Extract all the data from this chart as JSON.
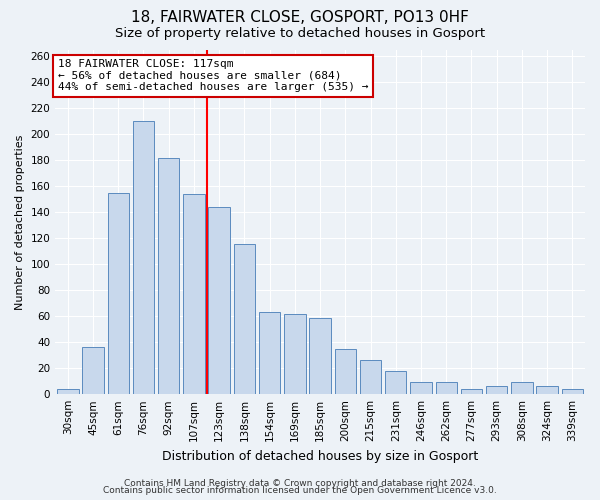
{
  "title": "18, FAIRWATER CLOSE, GOSPORT, PO13 0HF",
  "subtitle": "Size of property relative to detached houses in Gosport",
  "xlabel": "Distribution of detached houses by size in Gosport",
  "ylabel": "Number of detached properties",
  "categories": [
    "30sqm",
    "45sqm",
    "61sqm",
    "76sqm",
    "92sqm",
    "107sqm",
    "123sqm",
    "138sqm",
    "154sqm",
    "169sqm",
    "185sqm",
    "200sqm",
    "215sqm",
    "231sqm",
    "246sqm",
    "262sqm",
    "277sqm",
    "293sqm",
    "308sqm",
    "324sqm",
    "339sqm"
  ],
  "values": [
    4,
    36,
    155,
    210,
    182,
    154,
    144,
    116,
    63,
    62,
    59,
    35,
    26,
    18,
    9,
    9,
    4,
    6,
    9,
    6,
    4
  ],
  "bar_color": "#c8d8ec",
  "bar_edgecolor": "#5b8bbf",
  "vline_x_index": 6,
  "vline_color": "red",
  "annotation_title": "18 FAIRWATER CLOSE: 117sqm",
  "annotation_line1": "← 56% of detached houses are smaller (684)",
  "annotation_line2": "44% of semi-detached houses are larger (535) →",
  "annotation_box_edgecolor": "#cc0000",
  "ylim": [
    0,
    265
  ],
  "yticks": [
    0,
    20,
    40,
    60,
    80,
    100,
    120,
    140,
    160,
    180,
    200,
    220,
    240,
    260
  ],
  "footer1": "Contains HM Land Registry data © Crown copyright and database right 2024.",
  "footer2": "Contains public sector information licensed under the Open Government Licence v3.0.",
  "background_color": "#edf2f7",
  "grid_color": "#ffffff",
  "title_fontsize": 11,
  "subtitle_fontsize": 9.5,
  "xlabel_fontsize": 9,
  "ylabel_fontsize": 8,
  "tick_fontsize": 7.5,
  "annotation_fontsize": 8,
  "footer_fontsize": 6.5
}
